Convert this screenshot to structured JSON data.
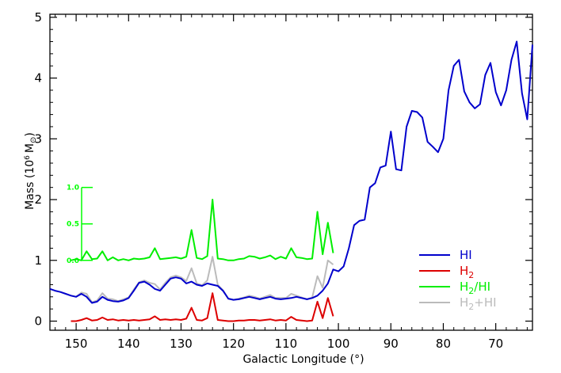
{
  "chart_data": {
    "type": "line",
    "xlabel": "Galactic Longitude (°)",
    "ylabel_main": "Mass (10",
    "ylabel_exp": "6",
    "ylabel_sym": "M",
    "ylabel_sub": "⊙",
    "ylabel_close": ")",
    "xlim": [
      155,
      63
    ],
    "ylim": [
      -0.15,
      5.05
    ],
    "x_ticks": [
      150,
      140,
      130,
      120,
      110,
      100,
      90,
      80,
      70
    ],
    "y_ticks": [
      0,
      1,
      2,
      3,
      4,
      5
    ],
    "inset_axis": {
      "ticks": [
        0.0,
        0.5,
        1.0
      ],
      "tick_labels": [
        "0.0",
        "0.5",
        "1.0"
      ],
      "color": "#00ff00",
      "base_y": 1.0,
      "scale": 1.2
    },
    "series": [
      {
        "name": "HI",
        "name_parts": [
          "HI",
          ""
        ],
        "color": "#0000cc",
        "x": [
          155,
          154,
          153,
          152,
          151,
          150,
          149,
          148,
          147,
          146,
          145,
          144,
          143,
          142,
          141,
          140,
          139,
          138,
          137,
          136,
          135,
          134,
          133,
          132,
          131,
          130,
          129,
          128,
          127,
          126,
          125,
          124,
          123,
          122,
          121,
          120,
          119,
          118,
          117,
          116,
          115,
          114,
          113,
          112,
          111,
          110,
          109,
          108,
          107,
          106,
          105,
          104,
          103,
          102,
          101,
          100,
          99,
          98,
          97,
          96,
          95,
          94,
          93,
          92,
          91,
          90,
          89,
          88,
          87,
          86,
          85,
          84,
          83,
          82,
          81,
          80,
          79,
          78,
          77,
          76,
          75,
          74,
          73,
          72,
          71,
          70,
          69,
          68,
          67,
          66,
          65,
          64,
          63
        ],
        "values": [
          0.53,
          0.5,
          0.48,
          0.45,
          0.42,
          0.4,
          0.45,
          0.4,
          0.3,
          0.32,
          0.4,
          0.35,
          0.33,
          0.32,
          0.34,
          0.38,
          0.5,
          0.63,
          0.65,
          0.6,
          0.53,
          0.5,
          0.6,
          0.7,
          0.72,
          0.7,
          0.62,
          0.65,
          0.6,
          0.58,
          0.62,
          0.6,
          0.58,
          0.5,
          0.37,
          0.35,
          0.36,
          0.38,
          0.4,
          0.38,
          0.36,
          0.38,
          0.4,
          0.37,
          0.36,
          0.37,
          0.38,
          0.4,
          0.38,
          0.36,
          0.38,
          0.42,
          0.5,
          0.62,
          0.85,
          0.82,
          0.9,
          1.2,
          1.58,
          1.65,
          1.67,
          2.2,
          2.27,
          2.53,
          2.56,
          3.12,
          2.5,
          2.48,
          3.2,
          3.46,
          3.44,
          3.35,
          2.95,
          2.87,
          2.78,
          3.0,
          3.8,
          4.2,
          4.3,
          3.78,
          3.6,
          3.5,
          3.57,
          4.05,
          4.25,
          3.77,
          3.55,
          3.8,
          4.3,
          4.6,
          3.75,
          3.32,
          4.55
        ]
      },
      {
        "name": "H2",
        "name_parts": [
          "H",
          "2"
        ],
        "color": "#dd0000",
        "x": [
          151,
          150,
          149,
          148,
          147,
          146,
          145,
          144,
          143,
          142,
          141,
          140,
          139,
          138,
          137,
          136,
          135,
          134,
          133,
          132,
          131,
          130,
          129,
          128,
          127,
          126,
          125,
          124,
          123,
          122,
          121,
          120,
          119,
          118,
          117,
          116,
          115,
          114,
          113,
          112,
          111,
          110,
          109,
          108,
          107,
          106,
          105,
          104,
          103,
          102,
          101
        ],
        "values": [
          0.0,
          0.0,
          0.02,
          0.05,
          0.01,
          0.02,
          0.06,
          0.02,
          0.03,
          0.01,
          0.02,
          0.01,
          0.02,
          0.01,
          0.02,
          0.03,
          0.08,
          0.02,
          0.03,
          0.02,
          0.03,
          0.02,
          0.04,
          0.22,
          0.02,
          0.01,
          0.05,
          0.46,
          0.02,
          0.01,
          0.0,
          0.0,
          0.01,
          0.01,
          0.02,
          0.02,
          0.01,
          0.02,
          0.03,
          0.01,
          0.02,
          0.01,
          0.07,
          0.02,
          0.01,
          0.0,
          0.01,
          0.32,
          0.05,
          0.38,
          0.08
        ]
      },
      {
        "name": "H2/HI",
        "name_parts": [
          "H",
          "2",
          "/HI"
        ],
        "color": "#00ee00",
        "x": [
          151,
          150,
          149,
          148,
          147,
          146,
          145,
          144,
          143,
          142,
          141,
          140,
          139,
          138,
          137,
          136,
          135,
          134,
          133,
          132,
          131,
          130,
          129,
          128,
          127,
          126,
          125,
          124,
          123,
          122,
          121,
          120,
          119,
          118,
          117,
          116,
          115,
          114,
          113,
          112,
          111,
          110,
          109,
          108,
          107,
          106,
          105,
          104,
          103,
          102,
          101
        ],
        "values": [
          1.0,
          1.02,
          1.0,
          1.15,
          1.02,
          1.03,
          1.15,
          1.0,
          1.05,
          1.0,
          1.02,
          1.0,
          1.03,
          1.02,
          1.03,
          1.05,
          1.2,
          1.02,
          1.03,
          1.04,
          1.05,
          1.03,
          1.06,
          1.5,
          1.04,
          1.02,
          1.07,
          2.0,
          1.03,
          1.02,
          1.0,
          1.0,
          1.02,
          1.03,
          1.07,
          1.06,
          1.03,
          1.05,
          1.08,
          1.02,
          1.06,
          1.03,
          1.2,
          1.05,
          1.04,
          1.02,
          1.03,
          1.8,
          1.1,
          1.62,
          1.12
        ]
      },
      {
        "name": "H2+HI",
        "name_parts": [
          "H",
          "2",
          "+HI"
        ],
        "color": "#bbbbbb",
        "x": [
          151,
          150,
          149,
          148,
          147,
          146,
          145,
          144,
          143,
          142,
          141,
          140,
          139,
          138,
          137,
          136,
          135,
          134,
          133,
          132,
          131,
          130,
          129,
          128,
          127,
          126,
          125,
          124,
          123,
          122,
          121,
          120,
          119,
          118,
          117,
          116,
          115,
          114,
          113,
          112,
          111,
          110,
          109,
          108,
          107,
          106,
          105,
          104,
          103,
          102,
          101
        ],
        "values": [
          0.42,
          0.4,
          0.47,
          0.45,
          0.31,
          0.34,
          0.46,
          0.37,
          0.36,
          0.33,
          0.36,
          0.39,
          0.52,
          0.64,
          0.67,
          0.63,
          0.61,
          0.52,
          0.63,
          0.72,
          0.75,
          0.72,
          0.66,
          0.87,
          0.62,
          0.59,
          0.67,
          1.06,
          0.6,
          0.51,
          0.37,
          0.35,
          0.37,
          0.39,
          0.42,
          0.4,
          0.37,
          0.4,
          0.43,
          0.38,
          0.38,
          0.38,
          0.45,
          0.42,
          0.39,
          0.36,
          0.39,
          0.74,
          0.55,
          1.0,
          0.93
        ]
      }
    ],
    "legend_position": "bottom-right"
  }
}
